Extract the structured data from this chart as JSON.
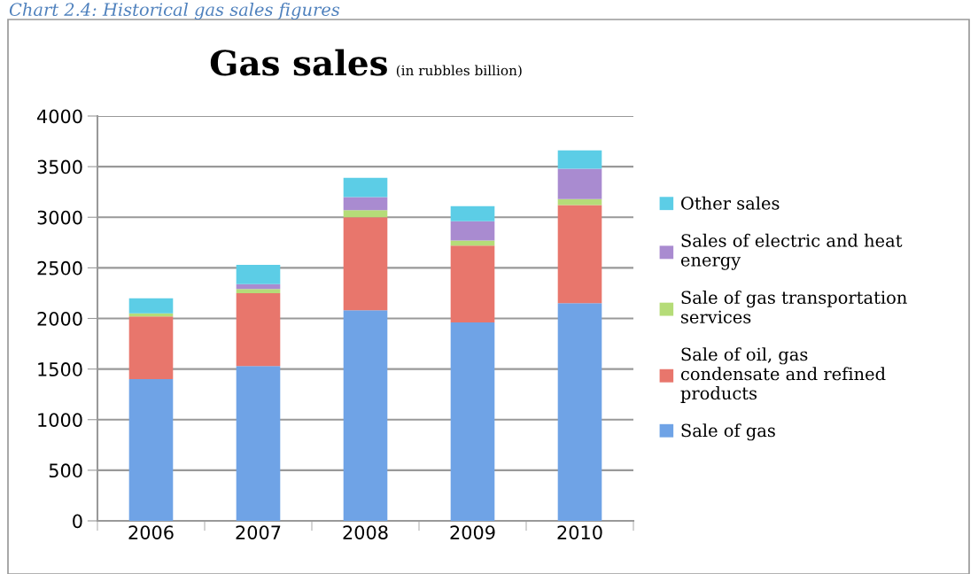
{
  "chart_data": {
    "type": "bar",
    "stacked": true,
    "title": "Gas sales",
    "subtitle": "(in rubbles billion)",
    "annotations": [
      "Chart 2.4: Historical gas sales figures"
    ],
    "categories": [
      "2006",
      "2007",
      "2008",
      "2009",
      "2010"
    ],
    "series": [
      {
        "name": "Sale of gas",
        "color": "#6fa3e6",
        "values": [
          1400,
          1530,
          2080,
          1960,
          2150
        ]
      },
      {
        "name": "Sale of oil, gas condensate and refined products",
        "color": "#e8766c",
        "values": [
          620,
          720,
          920,
          760,
          970
        ]
      },
      {
        "name": "Sale of gas transportation services",
        "color": "#b5dc78",
        "values": [
          30,
          40,
          70,
          50,
          60
        ]
      },
      {
        "name": "Sales of electric and heat energy",
        "color": "#a98bd0",
        "values": [
          0,
          50,
          130,
          190,
          300
        ]
      },
      {
        "name": "Other sales",
        "color": "#5ccde6",
        "values": [
          150,
          190,
          190,
          150,
          180
        ]
      }
    ],
    "ylim": [
      0,
      4000
    ],
    "yticks": [
      0,
      500,
      1000,
      1500,
      2000,
      2500,
      3000,
      3500,
      4000
    ],
    "grid": "y",
    "legend": "right"
  }
}
